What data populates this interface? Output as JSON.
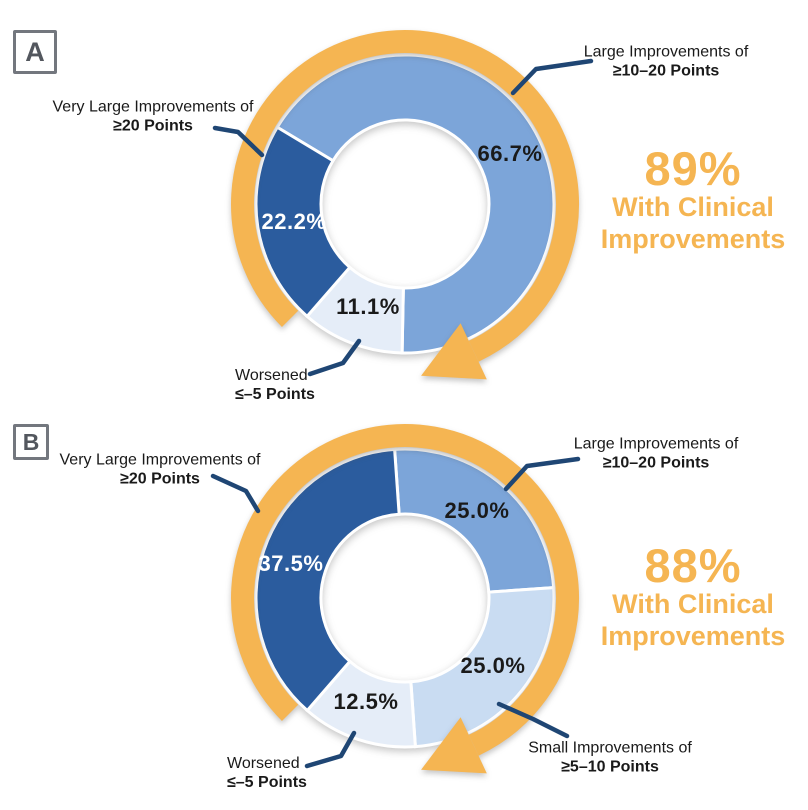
{
  "accent_color": "#F5B552",
  "leader_color": "#1F4674",
  "text_color": "#1A1A1A",
  "chart_data": [
    {
      "type": "donut",
      "panel": "A",
      "start_angle_deg": 301,
      "direction": "clockwise",
      "annotation": {
        "value": "89%",
        "lines": [
          "With Clinical",
          "Improvements"
        ]
      },
      "arrow_color": "#F5B552",
      "segments": [
        {
          "category": "Large Improvements of ≥10–20 Points",
          "value": 66.7,
          "label": "66.7%",
          "color": "#7CA5D9",
          "label_color": "#1A1A1A"
        },
        {
          "category": "Worsened ≤–5 Points",
          "value": 11.1,
          "label": "11.1%",
          "color": "#E5EDF8",
          "label_color": "#1A1A1A"
        },
        {
          "category": "Very Large Improvements of ≥20 Points",
          "value": 22.2,
          "label": "22.2%",
          "color": "#2B5C9E",
          "label_color": "#FFFFFF"
        }
      ]
    },
    {
      "type": "donut",
      "panel": "B",
      "start_angle_deg": -4,
      "direction": "clockwise",
      "annotation": {
        "value": "88%",
        "lines": [
          "With Clinical",
          "Improvements"
        ]
      },
      "arrow_color": "#F5B552",
      "segments": [
        {
          "category": "Large Improvements of ≥10–20 Points",
          "value": 25.0,
          "label": "25.0%",
          "color": "#7CA5D9",
          "label_color": "#1A1A1A"
        },
        {
          "category": "Small Improvements of ≥5–10 Points",
          "value": 25.0,
          "label": "25.0%",
          "color": "#C9DCF2",
          "label_color": "#1A1A1A"
        },
        {
          "category": "Worsened ≤–5 Points",
          "value": 12.5,
          "label": "12.5%",
          "color": "#E5EDF8",
          "label_color": "#1A1A1A"
        },
        {
          "category": "Very Large Improvements of ≥20 Points",
          "value": 37.5,
          "label": "37.5%",
          "color": "#2B5C9E",
          "label_color": "#FFFFFF"
        }
      ]
    }
  ],
  "panels": [
    {
      "tag": "A",
      "callouts": [
        {
          "line1": "Very Large Improvements of",
          "line2": "≥20 Points"
        },
        {
          "line1": "Large Improvements of",
          "line2": "≥10–20 Points"
        },
        {
          "line1": "Worsened",
          "line2": "≤–5 Points"
        }
      ]
    },
    {
      "tag": "B",
      "callouts": [
        {
          "line1": "Very Large Improvements of",
          "line2": "≥20 Points"
        },
        {
          "line1": "Large Improvements of",
          "line2": "≥10–20 Points"
        },
        {
          "line1": "Worsened",
          "line2": "≤–5 Points"
        },
        {
          "line1": "Small Improvements of",
          "line2": "≥5–10 Points"
        }
      ]
    }
  ]
}
